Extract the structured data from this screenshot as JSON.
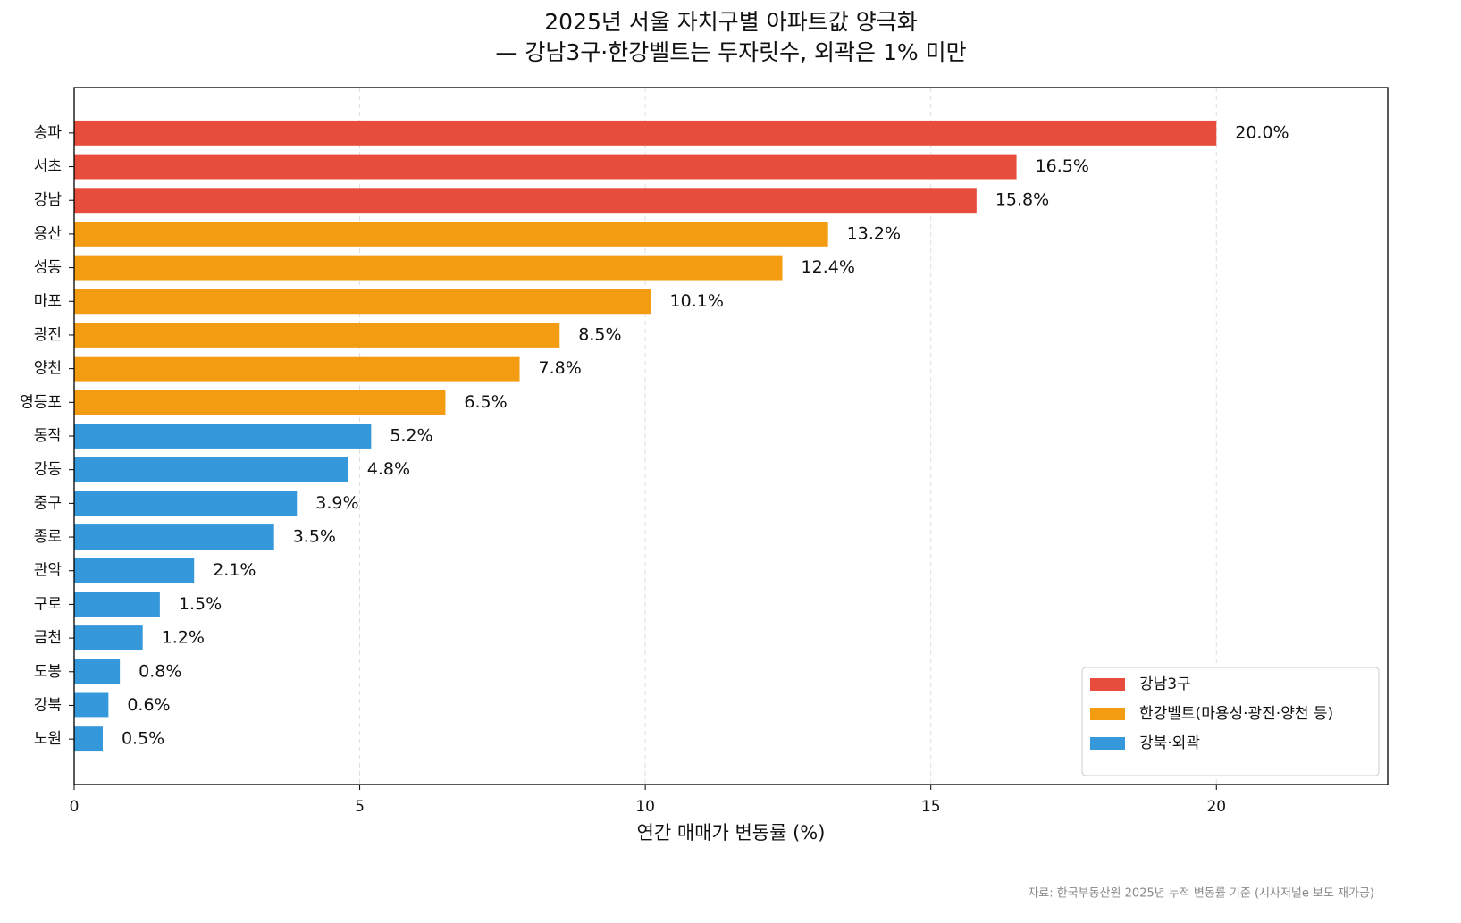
{
  "chart_data": {
    "type": "barh",
    "title": "2025년 서울 자치구별 아파트값 양극화",
    "subtitle": "— 강남3구·한강벨트는 두자릿수, 외곽은 1% 미만",
    "x_label": "연간 매매가 변동률 (%)",
    "source": "자료: 한국부동산원 2025년 누적 변동률 기준 (시사저널e 보도 재가공)",
    "categories": [
      "송파",
      "서초",
      "강남",
      "용산",
      "성동",
      "마포",
      "광진",
      "양천",
      "영등포",
      "동작",
      "강동",
      "중구",
      "종로",
      "관악",
      "구로",
      "금천",
      "도봉",
      "강북",
      "노원"
    ],
    "series": [
      {
        "name": "강남3구",
        "color": "#e74c3c",
        "values": [
          20,
          16.5,
          15.8,
          null,
          null,
          null,
          null,
          null,
          null,
          null,
          null,
          null,
          null,
          null,
          null,
          null,
          null,
          null,
          null
        ],
        "value_labels": [
          "20.0%",
          "16.5%",
          "15.8%",
          null,
          null,
          null,
          null,
          null,
          null,
          null,
          null,
          null,
          null,
          null,
          null,
          null,
          null,
          null,
          null
        ]
      },
      {
        "name": "한강벨트(마용성·광진·양천 등)",
        "color": "#f39c12",
        "values": [
          null,
          null,
          null,
          13.2,
          12.4,
          10.1,
          8.5,
          7.8,
          6.5,
          null,
          null,
          null,
          null,
          null,
          null,
          null,
          null,
          null,
          null
        ],
        "value_labels": [
          null,
          null,
          null,
          "13.2%",
          "12.4%",
          "10.1%",
          "8.5%",
          "7.8%",
          "6.5%",
          null,
          null,
          null,
          null,
          null,
          null,
          null,
          null,
          null,
          null
        ]
      },
      {
        "name": "강북·외곽",
        "color": "#3498db",
        "values": [
          null,
          null,
          null,
          null,
          null,
          null,
          null,
          null,
          null,
          5.2,
          4.8,
          3.9,
          3.5,
          2.1,
          1.5,
          1.2,
          0.8,
          0.6,
          0.5
        ],
        "value_labels": [
          null,
          null,
          null,
          null,
          null,
          null,
          null,
          null,
          null,
          "5.2%",
          "4.8%",
          "3.9%",
          "3.5%",
          "2.1%",
          "1.5%",
          "1.2%",
          "0.8%",
          "0.6%",
          "0.5%"
        ]
      }
    ],
    "xlim": [
      0,
      23
    ],
    "xticks": [
      0,
      5,
      10,
      15,
      20
    ],
    "grid": true,
    "legend": "lower right"
  }
}
